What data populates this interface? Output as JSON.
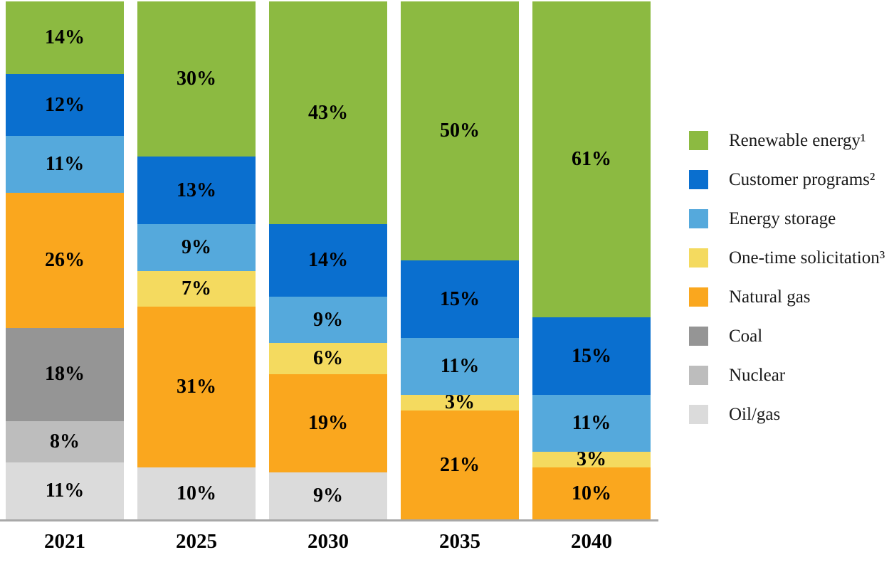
{
  "chart_data": {
    "type": "bar",
    "stacked": true,
    "orientation": "vertical",
    "unit": "%",
    "title": "",
    "xlabel": "",
    "ylabel": "",
    "ylim": [
      0,
      100
    ],
    "grid": false,
    "legend_position": "right",
    "value_labels": "each nonzero segment shows its percent value inside the segment",
    "categories": [
      "2021",
      "2025",
      "2030",
      "2035",
      "2040"
    ],
    "series": [
      {
        "name": "Renewable energy¹",
        "color": "#8CBA41",
        "values": [
          14,
          30,
          43,
          50,
          61
        ]
      },
      {
        "name": "Customer programs²",
        "color": "#0A6FCF",
        "values": [
          12,
          13,
          14,
          15,
          15
        ]
      },
      {
        "name": "Energy storage",
        "color": "#55A9DC",
        "values": [
          11,
          9,
          9,
          11,
          11
        ]
      },
      {
        "name": "One-time solicitation³",
        "color": "#F4DA5F",
        "values": [
          0,
          7,
          6,
          3,
          3
        ]
      },
      {
        "name": "Natural gas",
        "color": "#FAA71E",
        "values": [
          26,
          31,
          19,
          21,
          10
        ]
      },
      {
        "name": "Coal",
        "color": "#959595",
        "values": [
          18,
          0,
          0,
          0,
          0
        ]
      },
      {
        "name": "Nuclear",
        "color": "#BDBDBD",
        "values": [
          8,
          0,
          0,
          0,
          0
        ]
      },
      {
        "name": "Oil/gas",
        "color": "#DBDBDB",
        "values": [
          11,
          10,
          9,
          0,
          0
        ]
      }
    ],
    "axis_line_color": "#A8A8A8"
  },
  "legend": {
    "items": [
      {
        "label": "Renewable energy¹",
        "color": "#8CBA41"
      },
      {
        "label": "Customer programs²",
        "color": "#0A6FCF"
      },
      {
        "label": "Energy storage",
        "color": "#55A9DC"
      },
      {
        "label": "One-time solicitation³",
        "color": "#F4DA5F"
      },
      {
        "label": "Natural gas",
        "color": "#FAA71E"
      },
      {
        "label": "Coal",
        "color": "#959595"
      },
      {
        "label": "Nuclear",
        "color": "#BDBDBD"
      },
      {
        "label": "Oil/gas",
        "color": "#DBDBDB"
      }
    ]
  }
}
